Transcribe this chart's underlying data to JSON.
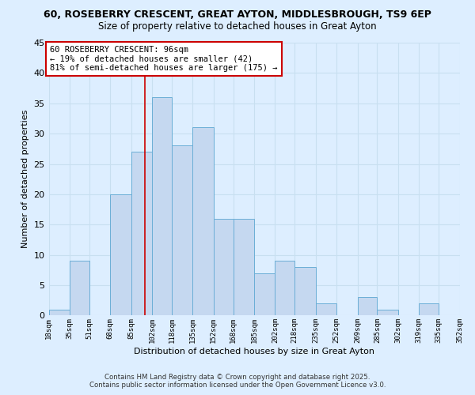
{
  "title1": "60, ROSEBERRY CRESCENT, GREAT AYTON, MIDDLESBROUGH, TS9 6EP",
  "title2": "Size of property relative to detached houses in Great Ayton",
  "xlabel": "Distribution of detached houses by size in Great Ayton",
  "ylabel": "Number of detached properties",
  "bin_edges": [
    18,
    35,
    51,
    68,
    85,
    102,
    118,
    135,
    152,
    168,
    185,
    202,
    218,
    235,
    252,
    269,
    285,
    302,
    319,
    335,
    352
  ],
  "bin_labels": [
    "18sqm",
    "35sqm",
    "51sqm",
    "68sqm",
    "85sqm",
    "102sqm",
    "118sqm",
    "135sqm",
    "152sqm",
    "168sqm",
    "185sqm",
    "202sqm",
    "218sqm",
    "235sqm",
    "252sqm",
    "269sqm",
    "285sqm",
    "302sqm",
    "319sqm",
    "335sqm",
    "352sqm"
  ],
  "counts": [
    1,
    9,
    0,
    20,
    27,
    36,
    28,
    31,
    16,
    16,
    7,
    9,
    8,
    2,
    0,
    3,
    1,
    0,
    2,
    0
  ],
  "bar_color": "#c5d8f0",
  "bar_edge_color": "#6baed6",
  "vline_x": 96,
  "vline_color": "#cc0000",
  "annotation_line1": "60 ROSEBERRY CRESCENT: 96sqm",
  "annotation_line2": "← 19% of detached houses are smaller (42)",
  "annotation_line3": "81% of semi-detached houses are larger (175) →",
  "annotation_box_color": "white",
  "annotation_box_edge": "#cc0000",
  "ylim": [
    0,
    45
  ],
  "yticks": [
    0,
    5,
    10,
    15,
    20,
    25,
    30,
    35,
    40,
    45
  ],
  "grid_color": "#c8dff0",
  "footer1": "Contains HM Land Registry data © Crown copyright and database right 2025.",
  "footer2": "Contains public sector information licensed under the Open Government Licence v3.0.",
  "bg_color": "#ddeeff"
}
